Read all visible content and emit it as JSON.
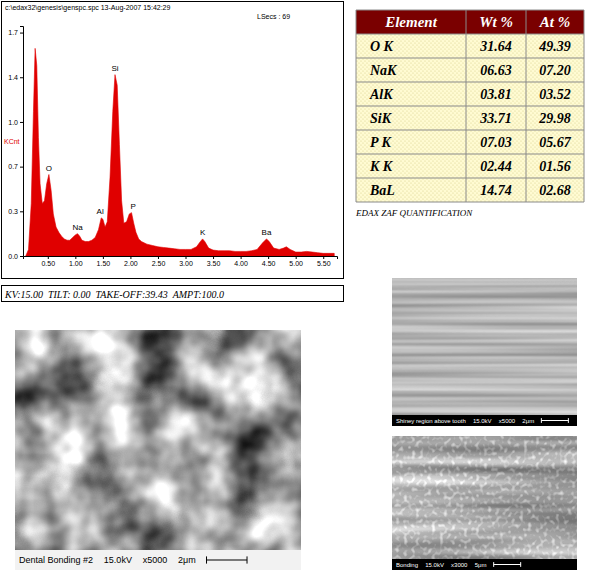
{
  "chart_data": {
    "type": "area",
    "title": "c:\\edax32\\genesis\\genspc.spc 13-Aug-2007 15:42:29",
    "subtitle": "LSecs : 69",
    "y_label": "KCnt",
    "color": "#e00000",
    "x": [
      0.1,
      0.15,
      0.2,
      0.24,
      0.27,
      0.3,
      0.33,
      0.36,
      0.4,
      0.44,
      0.48,
      0.52,
      0.56,
      0.6,
      0.65,
      0.7,
      0.75,
      0.8,
      0.85,
      0.9,
      0.95,
      1.0,
      1.04,
      1.08,
      1.12,
      1.18,
      1.24,
      1.3,
      1.36,
      1.42,
      1.47,
      1.5,
      1.54,
      1.58,
      1.63,
      1.68,
      1.72,
      1.76,
      1.8,
      1.84,
      1.88,
      1.93,
      1.98,
      2.02,
      2.06,
      2.1,
      2.15,
      2.2,
      2.3,
      2.4,
      2.5,
      2.6,
      2.7,
      2.8,
      2.9,
      3.0,
      3.1,
      3.2,
      3.27,
      3.31,
      3.35,
      3.42,
      3.5,
      3.6,
      3.7,
      3.8,
      3.9,
      4.0,
      4.1,
      4.2,
      4.3,
      4.4,
      4.47,
      4.52,
      4.6,
      4.7,
      4.78,
      4.83,
      4.9,
      5.0,
      5.1,
      5.2,
      5.3,
      5.4,
      5.5,
      5.6,
      5.7
    ],
    "values": [
      0,
      0.05,
      0.4,
      1.1,
      1.58,
      1.45,
      0.9,
      0.55,
      0.4,
      0.42,
      0.55,
      0.62,
      0.5,
      0.32,
      0.22,
      0.18,
      0.15,
      0.13,
      0.12,
      0.12,
      0.14,
      0.16,
      0.17,
      0.15,
      0.12,
      0.11,
      0.11,
      0.12,
      0.14,
      0.2,
      0.29,
      0.28,
      0.22,
      0.26,
      0.6,
      1.1,
      1.38,
      1.3,
      0.85,
      0.42,
      0.25,
      0.26,
      0.32,
      0.33,
      0.25,
      0.18,
      0.13,
      0.11,
      0.09,
      0.08,
      0.07,
      0.065,
      0.06,
      0.055,
      0.05,
      0.05,
      0.05,
      0.07,
      0.11,
      0.13,
      0.11,
      0.06,
      0.045,
      0.04,
      0.04,
      0.04,
      0.035,
      0.035,
      0.035,
      0.04,
      0.05,
      0.1,
      0.13,
      0.11,
      0.06,
      0.05,
      0.06,
      0.07,
      0.05,
      0.03,
      0.03,
      0.035,
      0.03,
      0.025,
      0.02,
      0.02,
      0.02
    ],
    "xlim": [
      0.05,
      5.75
    ],
    "ylim": [
      0,
      1.75
    ],
    "xticks": [
      {
        "value": 0.5,
        "label": "0.50"
      },
      {
        "value": 1,
        "label": "1.00"
      },
      {
        "value": 1.5,
        "label": "1.50"
      },
      {
        "value": 2,
        "label": "2.00"
      },
      {
        "value": 2.5,
        "label": "2.50"
      },
      {
        "value": 3,
        "label": "3.00"
      },
      {
        "value": 3.5,
        "label": "3.50"
      },
      {
        "value": 4,
        "label": "4.00"
      },
      {
        "value": 4.5,
        "label": "4.50"
      },
      {
        "value": 5,
        "label": "5.00"
      },
      {
        "value": 5.5,
        "label": "5.50"
      }
    ],
    "yticks": [
      {
        "value": 0,
        "label": "0.0"
      },
      {
        "value": 0.34,
        "label": "0.3"
      },
      {
        "value": 0.68,
        "label": "0.7"
      },
      {
        "value": 1.02,
        "label": "1.0"
      },
      {
        "value": 1.36,
        "label": "1.4"
      },
      {
        "value": 1.7,
        "label": "1.7"
      }
    ],
    "grid": false,
    "annotations": [
      {
        "text": "O",
        "x": 0.52,
        "y": 0.62
      },
      {
        "text": "Na",
        "x": 1.04,
        "y": 0.17
      },
      {
        "text": "Al",
        "x": 1.45,
        "y": 0.29
      },
      {
        "text": "Si",
        "x": 1.72,
        "y": 1.38
      },
      {
        "text": "P",
        "x": 2.05,
        "y": 0.33
      },
      {
        "text": "K",
        "x": 3.31,
        "y": 0.13
      },
      {
        "text": "Ba",
        "x": 4.47,
        "y": 0.13
      }
    ],
    "footer": "KV:15.00  TILT: 0.00  TAKE-OFF:39.43  AMPT:100.0"
  },
  "table": {
    "header": [
      "Element",
      "Wt %",
      "At %"
    ],
    "rows": [
      [
        "O K",
        "31.64",
        "49.39"
      ],
      [
        "NaK",
        "06.63",
        "07.20"
      ],
      [
        "AlK",
        "03.81",
        "03.52"
      ],
      [
        "SiK",
        "33.71",
        "29.98"
      ],
      [
        "P K",
        "07.03",
        "05.67"
      ],
      [
        "K K",
        "02.44",
        "01.56"
      ],
      [
        "BaL",
        "14.74",
        "02.68"
      ]
    ],
    "caption": "EDAX ZAF QUANTIFICATION"
  },
  "images": [
    {
      "caption": [
        "Dental Bonding #2",
        "15.0kV",
        "x5000",
        "2μm"
      ]
    },
    {
      "caption": [
        "Shiney region above tooth",
        "15.0kV",
        "x5000",
        "2μm"
      ]
    },
    {
      "caption": [
        "Bonding",
        "15.0kV",
        "x3000",
        "5μm"
      ]
    }
  ]
}
